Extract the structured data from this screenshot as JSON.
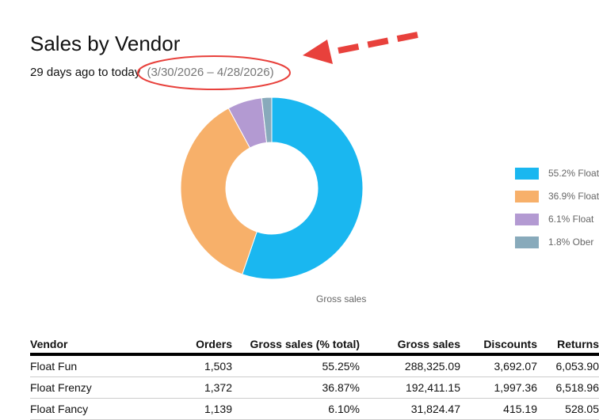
{
  "page": {
    "title": "Sales by Vendor",
    "subtitle_prefix": "29 days ago to today",
    "date_range": "(3/30/2026 – 4/28/2026)"
  },
  "colors": {
    "accent_annotation": "#e8413c",
    "legend_text": "#666666"
  },
  "chart_data": {
    "type": "pie",
    "style": "donut",
    "caption": "Gross sales",
    "legend_position": "right",
    "slices": [
      {
        "legend_label": "55.2% Float",
        "value": 55.25,
        "color": "#1ab7f0"
      },
      {
        "legend_label": "36.9% Float",
        "value": 36.87,
        "color": "#f7b06a"
      },
      {
        "legend_label": "6.1% Float",
        "value": 6.1,
        "color": "#b39ad2"
      },
      {
        "legend_label": "1.8% Ober",
        "value": 1.78,
        "color": "#88aabb"
      }
    ]
  },
  "table": {
    "columns": [
      "Vendor",
      "Orders",
      "Gross sales (% total)",
      "Gross sales",
      "Discounts",
      "Returns"
    ],
    "rows": [
      [
        "Float Fun",
        "1,503",
        "55.25%",
        "288,325.09",
        "3,692.07",
        "6,053.90"
      ],
      [
        "Float Frenzy",
        "1,372",
        "36.87%",
        "192,411.15",
        "1,997.36",
        "6,518.96"
      ],
      [
        "Float Fancy",
        "1,139",
        "6.10%",
        "31,824.47",
        "415.19",
        "528.05"
      ]
    ]
  }
}
